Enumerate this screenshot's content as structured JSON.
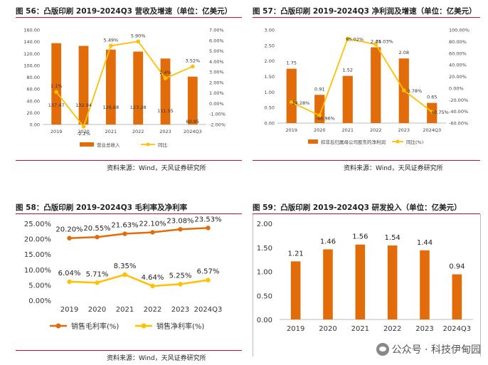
{
  "watermark": "公众号 · 科技伊甸园",
  "charts": [
    {
      "title": "图 56：凸版印刷 2019-2024Q3 营收及增速（单位：亿美元）",
      "source": "资料来源：Wind，天风证券研究所",
      "chart_data": {
        "type": "bar",
        "categories": [
          "2019",
          "2020",
          "2021",
          "2022",
          "2023",
          "2024Q3"
        ],
        "series": [
          {
            "name": "营业总收入",
            "type": "bar",
            "axis": "left",
            "values": [
              137.47,
              132.94,
              126.68,
              123.28,
              111.55,
              80.95
            ],
            "labels": [
              "137.47",
              "132.94",
              "126.68",
              "123.28",
              "111.55",
              "80.95"
            ]
          },
          {
            "name": "同比",
            "type": "line",
            "axis": "right",
            "values": [
              1.1,
              -2.2,
              5.49,
              5.9,
              2.4,
              3.52
            ],
            "labels": [
              "1.1%",
              "-2.2%",
              "5.49%",
              "5.90%",
              "2.4%",
              "3.52%"
            ]
          }
        ],
        "ylim_left": [
          0,
          160
        ],
        "yticks_left": [
          "0.00",
          "20.00",
          "40.00",
          "60.00",
          "80.00",
          "100.00",
          "120.00",
          "140.00",
          "160.00"
        ],
        "ylim_right": [
          -2,
          7
        ],
        "yticks_right": [
          "-2.00%",
          "-1.00%",
          "0.00%",
          "1.00%",
          "2.00%",
          "3.00%",
          "4.00%",
          "5.00%",
          "6.00%",
          "7.00%"
        ],
        "legend_position": "bottom"
      }
    },
    {
      "title": "图 57：凸版印刷 2019-2024Q3 净利润及增速（单位：亿美元）",
      "source": "资料来源：Wind，天风证券研究所",
      "chart_data": {
        "type": "bar",
        "categories": [
          "2019",
          "2020",
          "2021",
          "2022",
          "2023",
          "2024Q3"
        ],
        "series": [
          {
            "name": "扣非后归属母公司股东的净利润",
            "type": "bar",
            "axis": "left",
            "values": [
              1.75,
              0.91,
              1.52,
              2.44,
              2.08,
              0.65
            ],
            "labels": [
              "1.75",
              "0.91",
              "1.52",
              "2.44",
              "2.08",
              "0.65"
            ]
          },
          {
            "name": "同比(%)",
            "type": "line",
            "axis": "right",
            "values": [
              -24.28,
              -46.96,
              85.02,
              75.03,
              -3.78,
              -40.75
            ],
            "labels": [
              "-24.28%",
              "-46.96%",
              "85.02%",
              "75.03%",
              "-3.78%",
              "-40.75%"
            ]
          }
        ],
        "ylim_left": [
          0,
          3
        ],
        "yticks_left": [
          "0.00",
          "0.50",
          "1.00",
          "1.50",
          "2.00",
          "2.50",
          "3.00"
        ],
        "ylim_right": [
          -60,
          100
        ],
        "yticks_right": [
          "-60.00%",
          "-40.00%",
          "-20.00%",
          "0.00%",
          "20.00%",
          "40.00%",
          "60.00%",
          "80.00%",
          "100.00%"
        ],
        "legend_position": "bottom"
      }
    },
    {
      "title": "图 58：凸版印刷 2019-2024Q3 毛利率及净利率",
      "source": "资料来源：Wind，天风证券研究所",
      "chart_data": {
        "type": "line",
        "categories": [
          "2019",
          "2020",
          "2021",
          "2022",
          "2023",
          "2024Q3"
        ],
        "series": [
          {
            "name": "销售毛利率(%)",
            "values": [
              20.2,
              20.55,
              21.63,
              22.1,
              23.08,
              23.53
            ],
            "labels": [
              "20.20%",
              "20.55%",
              "21.63%",
              "22.10%",
              "23.08%",
              "23.53%"
            ],
            "color": "#e36c0a"
          },
          {
            "name": "销售净利率(%)",
            "values": [
              6.04,
              5.71,
              8.35,
              4.64,
              5.25,
              6.57
            ],
            "labels": [
              "6.04%",
              "5.71%",
              "8.35%",
              "4.64%",
              "5.25%",
              "6.57%"
            ],
            "color": "#ffc000"
          }
        ],
        "ylim": [
          0,
          25
        ],
        "yticks": [
          "0.00%",
          "5.00%",
          "10.00%",
          "15.00%",
          "20.00%",
          "25.00%"
        ],
        "legend_position": "bottom"
      }
    },
    {
      "title": "图 59：凸版印刷 2019-2024Q3 研发投入（单位：亿美元）",
      "source": "资料来源：Wind，天风证券研究所",
      "chart_data": {
        "type": "bar",
        "categories": [
          "2019",
          "2020",
          "2021",
          "2022",
          "2023",
          "2024Q3"
        ],
        "values": [
          1.21,
          1.46,
          1.56,
          1.54,
          1.44,
          0.94
        ],
        "labels": [
          "1.21",
          "1.46",
          "1.56",
          "1.54",
          "1.44",
          "0.94"
        ],
        "ylim": [
          0,
          2
        ],
        "yticks": [
          "0.00",
          "0.50",
          "1.00",
          "1.50",
          "2.00"
        ]
      }
    }
  ],
  "colors": {
    "bar": "#e36c0a",
    "line": "#ffc000",
    "rule": "#c8102e",
    "axis": "#999999"
  }
}
